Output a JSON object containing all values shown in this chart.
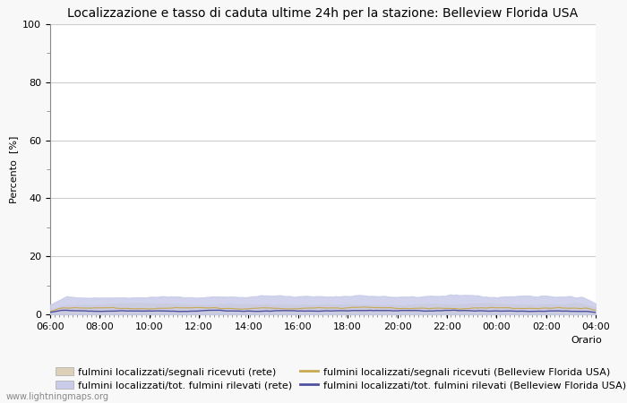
{
  "title": "Localizzazione e tasso di caduta ultime 24h per la stazione: Belleview Florida USA",
  "ylabel": "Percento  [%]",
  "xlabel_label": "Orario",
  "footer": "www.lightningmaps.org",
  "ylim": [
    0,
    100
  ],
  "yticks_major": [
    0,
    20,
    40,
    60,
    80,
    100
  ],
  "xtick_labels": [
    "06:00",
    "08:00",
    "10:00",
    "12:00",
    "14:00",
    "16:00",
    "18:00",
    "20:00",
    "22:00",
    "00:00",
    "02:00",
    "04:00"
  ],
  "n_points": 200,
  "fill_rete_color": "#ddd0b8",
  "fill_station_color": "#c8cce8",
  "line_rete_color": "#c8a850",
  "line_station_color": "#5050a0",
  "background_color": "#f8f8f8",
  "plot_bg_color": "#ffffff",
  "grid_color": "#cccccc",
  "title_fontsize": 10,
  "axis_fontsize": 8,
  "tick_fontsize": 8,
  "legend_fontsize": 8,
  "legend1_label": "fulmini localizzati/segnali ricevuti (rete)",
  "legend2_label": "fulmini localizzati/tot. fulmini rilevati (rete)",
  "legend3_label": "fulmini localizzati/segnali ricevuti (Belleview Florida USA)",
  "legend4_label": "fulmini localizzati/tot. fulmini rilevati (Belleview Florida USA)"
}
